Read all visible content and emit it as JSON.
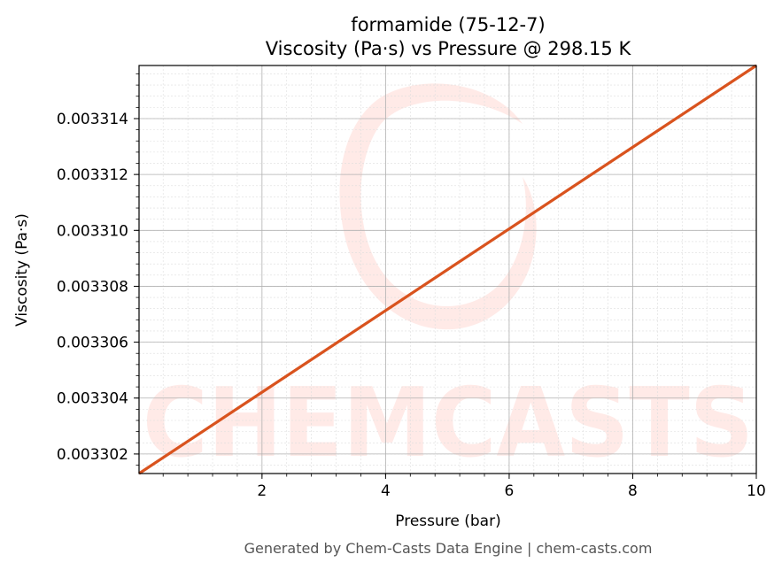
{
  "chart_data": {
    "type": "line",
    "title": "formamide (75-12-7)",
    "subtitle": "Viscosity (Pa·s) vs Pressure @ 298.15 K",
    "xlabel": "Pressure (bar)",
    "ylabel": "Viscosity (Pa·s)",
    "xlim": [
      0.01,
      10
    ],
    "ylim": [
      0.0033013,
      0.0033159
    ],
    "x_ticks": [
      2,
      4,
      6,
      8,
      10
    ],
    "x_tick_labels": [
      "2",
      "4",
      "6",
      "8",
      "10"
    ],
    "y_ticks": [
      0.003302,
      0.003304,
      0.003306,
      0.003308,
      0.00331,
      0.003312,
      0.003314
    ],
    "y_tick_labels": [
      "0.003302",
      "0.003304",
      "0.003306",
      "0.003308",
      "0.003310",
      "0.003312",
      "0.003314"
    ],
    "grid": true,
    "series": [
      {
        "color": "#d9531e",
        "x": [
          0.01,
          10
        ],
        "y": [
          0.0033013,
          0.0033159
        ]
      }
    ]
  },
  "watermark": {
    "text": "CHEMCASTS",
    "color": "#ffd9d4"
  },
  "footer": "Generated by Chem-Casts Data Engine | chem-casts.com"
}
